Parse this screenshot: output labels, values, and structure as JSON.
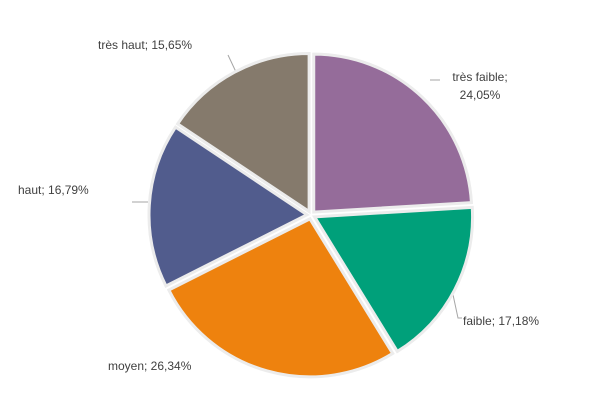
{
  "chart_data": {
    "type": "pie",
    "values": [
      24.05,
      17.18,
      26.34,
      16.79,
      15.65
    ],
    "value_labels": [
      "très faible; 24,05%",
      "faible; 17,18%",
      "moyen; 26,34%",
      "haut; 16,79%",
      "très haut; 15,65%"
    ],
    "colors": [
      "#956c9a",
      "#00a07a",
      "#ee820e",
      "#515c8d",
      "#857a6c"
    ]
  }
}
